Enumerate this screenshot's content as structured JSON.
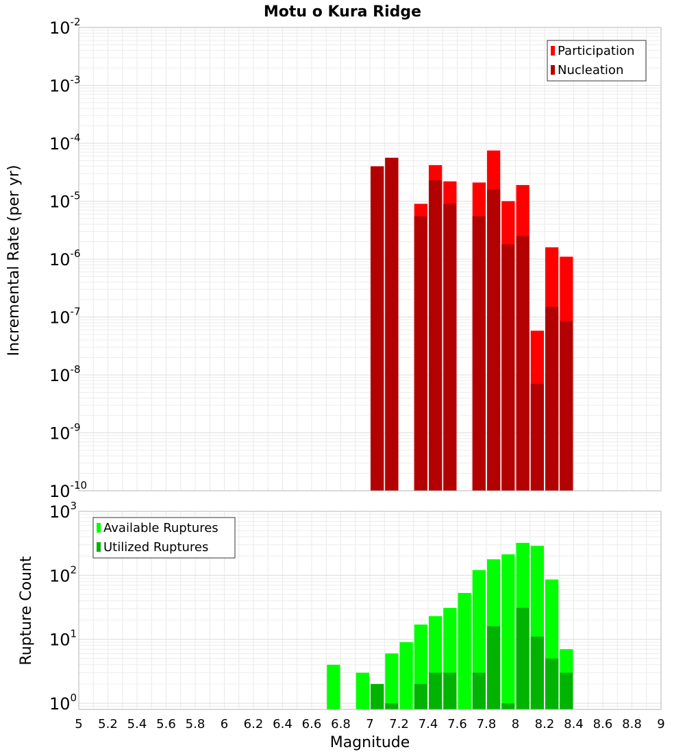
{
  "chart_data": [
    {
      "type": "bar",
      "title": "Motu o Kura Ridge",
      "ylabel": "Incremental Rate (per yr)",
      "xlabel": "",
      "yscale": "log",
      "ylim": [
        1e-10,
        0.01
      ],
      "xlim": [
        5,
        9
      ],
      "grid": true,
      "legend_position": "top-right",
      "colors": {
        "Participation": "#ff0000",
        "Nucleation": "#b30000"
      },
      "x": [
        7.05,
        7.15,
        7.35,
        7.45,
        7.55,
        7.75,
        7.85,
        7.95,
        8.05,
        8.15,
        8.25,
        8.35
      ],
      "series": [
        {
          "name": "Participation",
          "values": [
            4e-05,
            5.6e-05,
            9e-06,
            4.2e-05,
            2.2e-05,
            2.1e-05,
            7.5e-05,
            1e-05,
            1.9e-05,
            5.8e-08,
            1.6e-06,
            1.1e-06
          ]
        },
        {
          "name": "Nucleation",
          "values": [
            4e-05,
            5.6e-05,
            5.5e-06,
            2.3e-05,
            9e-06,
            5.5e-06,
            1.6e-05,
            1.8e-06,
            2.5e-06,
            7e-09,
            1.5e-07,
            8.5e-08
          ]
        }
      ],
      "y_ticks": [
        {
          "base": "10",
          "exp": "-10"
        },
        {
          "base": "10",
          "exp": "-9"
        },
        {
          "base": "10",
          "exp": "-8"
        },
        {
          "base": "10",
          "exp": "-7"
        },
        {
          "base": "10",
          "exp": "-6"
        },
        {
          "base": "10",
          "exp": "-5"
        },
        {
          "base": "10",
          "exp": "-4"
        },
        {
          "base": "10",
          "exp": "-3"
        },
        {
          "base": "10",
          "exp": "-2"
        }
      ]
    },
    {
      "type": "bar",
      "title": "",
      "ylabel": "Rupture Count",
      "xlabel": "Magnitude",
      "yscale": "log",
      "ylim": [
        0.8,
        1000
      ],
      "xlim": [
        5,
        9
      ],
      "grid": true,
      "legend_position": "top-left",
      "colors": {
        "Available Ruptures": "#00ff00",
        "Utilized Ruptures": "#00b300"
      },
      "x": [
        6.75,
        6.95,
        7.05,
        7.15,
        7.25,
        7.35,
        7.45,
        7.55,
        7.65,
        7.75,
        7.85,
        7.95,
        8.05,
        8.15,
        8.25,
        8.35
      ],
      "series": [
        {
          "name": "Available Ruptures",
          "values": [
            4,
            3,
            2,
            6,
            9,
            17,
            23,
            31,
            53,
            121,
            178,
            213,
            322,
            289,
            86,
            7
          ]
        },
        {
          "name": "Utilized Ruptures",
          "values": [
            0,
            0,
            2,
            1,
            0,
            2,
            3,
            3,
            0,
            3,
            16,
            1,
            31,
            11,
            5,
            3
          ]
        }
      ],
      "y_ticks": [
        {
          "base": "10",
          "exp": "0"
        },
        {
          "base": "10",
          "exp": "1"
        },
        {
          "base": "10",
          "exp": "2"
        },
        {
          "base": "10",
          "exp": "3"
        }
      ],
      "x_tick_labels": [
        "5",
        "5.2",
        "5.4",
        "5.6",
        "5.8",
        "6",
        "6.2",
        "6.4",
        "6.6",
        "6.8",
        "7",
        "7.2",
        "7.4",
        "7.6",
        "7.8",
        "8",
        "8.2",
        "8.4",
        "8.6",
        "8.8",
        "9"
      ]
    }
  ]
}
